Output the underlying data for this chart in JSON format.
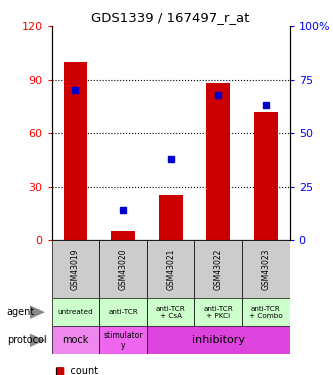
{
  "title": "GDS1339 / 167497_r_at",
  "samples": [
    "GSM43019",
    "GSM43020",
    "GSM43021",
    "GSM43022",
    "GSM43023"
  ],
  "counts": [
    100,
    5,
    25,
    88,
    72
  ],
  "percentile_ranks": [
    70,
    14,
    38,
    68,
    63
  ],
  "ylim_left": [
    0,
    120
  ],
  "ylim_right": [
    0,
    100
  ],
  "yticks_left": [
    0,
    30,
    60,
    90,
    120
  ],
  "yticks_right": [
    0,
    25,
    50,
    75,
    100
  ],
  "ytick_labels_left": [
    "0",
    "30",
    "60",
    "90",
    "120"
  ],
  "ytick_labels_right": [
    "0",
    "25",
    "50",
    "75",
    "100%"
  ],
  "bar_color": "#cc0000",
  "dot_color": "#0000cc",
  "agent_labels": [
    "untreated",
    "anti-TCR",
    "anti-TCR\n+ CsA",
    "anti-TCR\n+ PKCi",
    "anti-TCR\n+ Combo"
  ],
  "agent_bg": "#ccffcc",
  "protocol_bg_mock": "#ee88ee",
  "protocol_bg_stimulatory": "#ee66ee",
  "protocol_bg_inhibitory": "#dd44dd",
  "sample_bg": "#cccccc",
  "grid_lines": [
    30,
    60,
    90
  ],
  "dot_scale": 1.2
}
